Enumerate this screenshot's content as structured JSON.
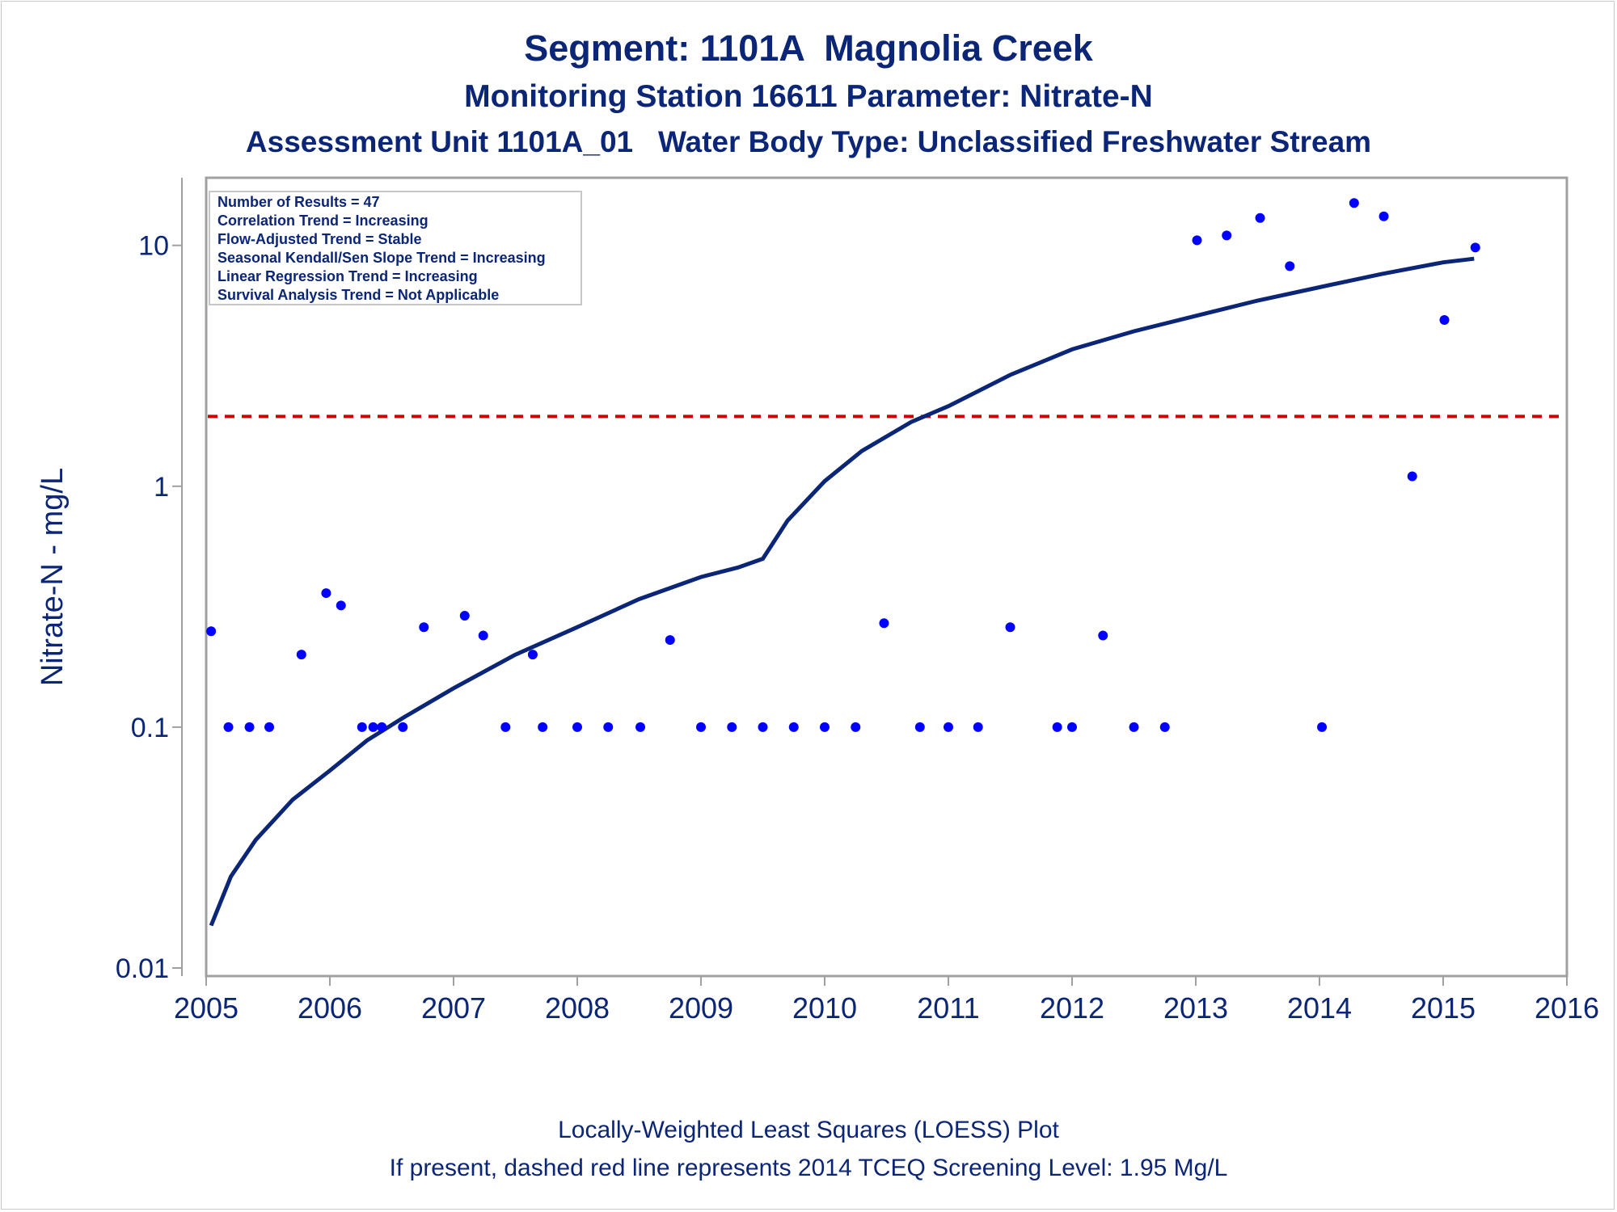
{
  "header": {
    "title": "Segment: 1101A  Magnolia Creek",
    "subtitle1": "Monitoring Station 16611 Parameter: Nitrate-N",
    "subtitle2": "Assessment Unit 1101A_01   Water Body Type: Unclassified Freshwater Stream"
  },
  "footnotes": {
    "line1": "Locally-Weighted Least Squares (LOESS) Plot",
    "line2": "If present, dashed red line represents 2014 TCEQ Screening Level: 1.95 Mg/L"
  },
  "colors": {
    "text": "#0b2577",
    "points": "#0000ff",
    "loess": "#0b2577",
    "screening_line": "#d10000",
    "frame": "#a0a0a0"
  },
  "chart_data": {
    "type": "scatter",
    "title": "Segment: 1101A  Magnolia Creek",
    "xlabel": "",
    "ylabel": "Nitrate-N - mg/L",
    "y_scale": "log",
    "xlim": [
      2005,
      2016
    ],
    "ylim": [
      0.01,
      17
    ],
    "x_ticks": [
      2005,
      2006,
      2007,
      2008,
      2009,
      2010,
      2011,
      2012,
      2013,
      2014,
      2015,
      2016
    ],
    "y_ticks": [
      0.01,
      0.1,
      1,
      10
    ],
    "y_tick_labels": [
      "0.01",
      "0.1",
      "1",
      "10"
    ],
    "legend_position": "top-left",
    "legend": [
      "Number of Results = 47",
      "Correlation Trend = Increasing",
      "Flow-Adjusted Trend = Stable",
      "Seasonal Kendall/Sen Slope Trend = Increasing",
      "Linear Regression Trend = Increasing",
      "Survival Analysis Trend = Not Applicable"
    ],
    "screening_level": 1.95,
    "series": [
      {
        "kind": "points",
        "x": [
          2005.04,
          2005.18,
          2005.35,
          2005.51,
          2005.77,
          2005.97,
          2006.09,
          2006.26,
          2006.35,
          2006.42,
          2006.59,
          2006.76,
          2007.09,
          2007.24,
          2007.42,
          2007.64,
          2007.72,
          2008.0,
          2008.25,
          2008.51,
          2008.75,
          2009.0,
          2009.25,
          2009.5,
          2009.75,
          2010.0,
          2010.25,
          2010.48,
          2010.77,
          2011.0,
          2011.24,
          2011.5,
          2011.88,
          2012.0,
          2012.25,
          2012.5,
          2012.75,
          2013.01,
          2013.25,
          2013.52,
          2013.76,
          2014.02,
          2014.28,
          2014.52,
          2014.75,
          2015.01,
          2015.26
        ],
        "y": [
          0.25,
          0.1,
          0.1,
          0.1,
          0.2,
          0.36,
          0.32,
          0.1,
          0.1,
          0.1,
          0.1,
          0.26,
          0.29,
          0.24,
          0.1,
          0.2,
          0.1,
          0.1,
          0.1,
          0.1,
          0.23,
          0.1,
          0.1,
          0.1,
          0.1,
          0.1,
          0.1,
          0.27,
          0.1,
          0.1,
          0.1,
          0.26,
          0.1,
          0.1,
          0.24,
          0.1,
          0.1,
          10.5,
          11,
          13,
          8.2,
          0.1,
          15,
          13.2,
          1.1,
          4.9,
          9.8
        ]
      },
      {
        "kind": "loess",
        "x": [
          2005.04,
          2005.2,
          2005.4,
          2005.7,
          2006.0,
          2006.3,
          2006.6,
          2007.0,
          2007.5,
          2008.0,
          2008.5,
          2009.0,
          2009.3,
          2009.5,
          2009.7,
          2010.0,
          2010.3,
          2010.7,
          2011.0,
          2011.5,
          2012.0,
          2012.5,
          2013.0,
          2013.5,
          2014.0,
          2014.5,
          2015.0,
          2015.25
        ],
        "y": [
          0.015,
          0.024,
          0.034,
          0.05,
          0.066,
          0.088,
          0.11,
          0.145,
          0.2,
          0.26,
          0.34,
          0.42,
          0.46,
          0.5,
          0.72,
          1.05,
          1.4,
          1.85,
          2.15,
          2.9,
          3.7,
          4.4,
          5.1,
          5.9,
          6.7,
          7.6,
          8.5,
          8.8
        ]
      }
    ]
  }
}
